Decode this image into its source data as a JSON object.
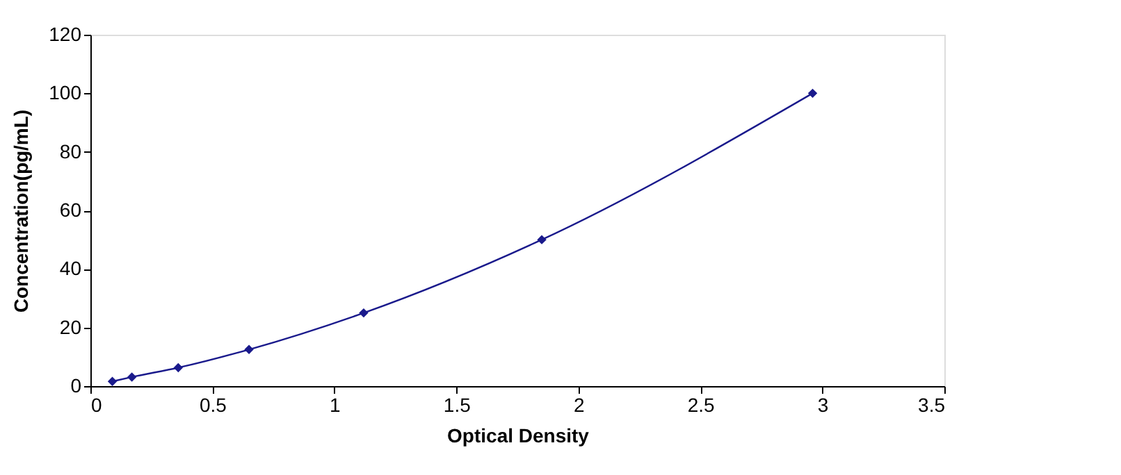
{
  "chart_data": {
    "type": "line",
    "xlabel": "Optical Density",
    "ylabel": "Concentration(pg/mL)",
    "x": [
      0.09,
      0.17,
      0.36,
      0.65,
      1.12,
      1.85,
      2.96
    ],
    "series": [
      {
        "color": "#1a1a8c",
        "values": [
          1.6,
          3.1,
          6.3,
          12.5,
          25,
          50,
          100
        ]
      }
    ],
    "xlim": [
      0,
      3.5
    ],
    "xticks": [
      0,
      0.5,
      1,
      1.5,
      2,
      2.5,
      3,
      3.5
    ],
    "ylim": [
      0,
      120
    ],
    "yticks": [
      0,
      20,
      40,
      60,
      80,
      100,
      120
    ],
    "grid": false,
    "marker": "diamond",
    "line_style": "solid"
  }
}
